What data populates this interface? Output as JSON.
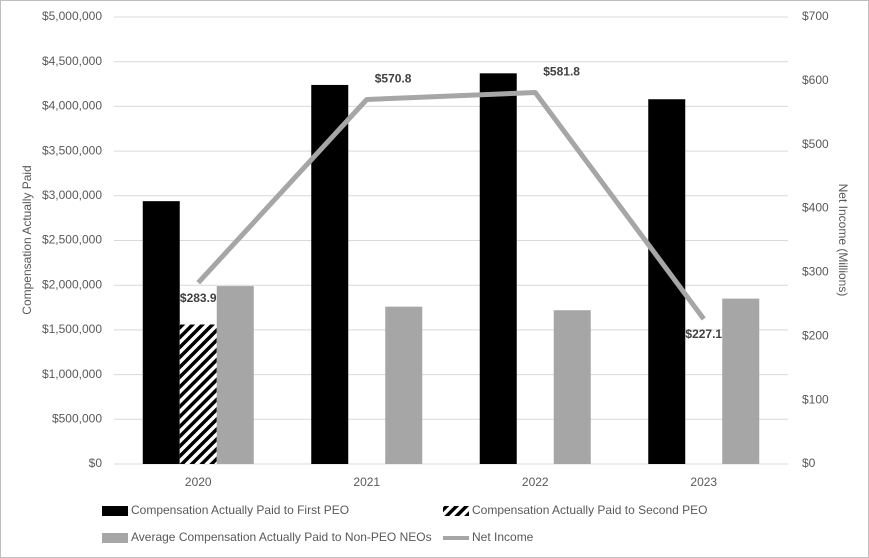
{
  "chart_data": {
    "type": "bar",
    "categories": [
      "2020",
      "2021",
      "2022",
      "2023"
    ],
    "series": [
      {
        "name": "Compensation Actually Paid to First PEO",
        "type": "bar",
        "color": "#000000",
        "values": [
          2940000,
          4240000,
          4370000,
          4080000
        ]
      },
      {
        "name": "Compensation Actually Paid to Second PEO",
        "type": "bar",
        "color": "#000000",
        "pattern": "hatch",
        "values": [
          1560000,
          null,
          null,
          null
        ]
      },
      {
        "name": "Average Compensation Actually Paid to Non-PEO NEOs",
        "type": "bar",
        "color": "#a6a6a6",
        "values": [
          1990000,
          1760000,
          1720000,
          1850000
        ]
      },
      {
        "name": "Net Income",
        "type": "line",
        "axis": "y2",
        "color": "#a6a6a6",
        "values": [
          283.9,
          570.8,
          581.8,
          227.1
        ],
        "value_labels": [
          "$283.9",
          "$570.8",
          "$581.8",
          "$227.1"
        ]
      }
    ],
    "y_label": "Compensation Actually Paid",
    "y2_label": "Net Income (Millions)",
    "ylim": [
      0,
      5000000
    ],
    "yticks": [
      {
        "value": 0,
        "label": "$0"
      },
      {
        "value": 500000,
        "label": "$500,000"
      },
      {
        "value": 1000000,
        "label": "$1,000,000"
      },
      {
        "value": 1500000,
        "label": "$1,500,000"
      },
      {
        "value": 2000000,
        "label": "$2,000,000"
      },
      {
        "value": 2500000,
        "label": "$2,500,000"
      },
      {
        "value": 3000000,
        "label": "$3,000,000"
      },
      {
        "value": 3500000,
        "label": "$3,500,000"
      },
      {
        "value": 4000000,
        "label": "$4,000,000"
      },
      {
        "value": 4500000,
        "label": "$4,500,000"
      },
      {
        "value": 5000000,
        "label": "$5,000,000"
      }
    ],
    "y2lim": [
      0,
      700
    ],
    "y2ticks": [
      {
        "value": 0,
        "label": "$0"
      },
      {
        "value": 100,
        "label": "$100"
      },
      {
        "value": 200,
        "label": "$200"
      },
      {
        "value": 300,
        "label": "$300"
      },
      {
        "value": 400,
        "label": "$400"
      },
      {
        "value": 500,
        "label": "$500"
      },
      {
        "value": 600,
        "label": "$600"
      },
      {
        "value": 700,
        "label": "$700"
      }
    ],
    "grid": true,
    "legend": "bottom"
  }
}
